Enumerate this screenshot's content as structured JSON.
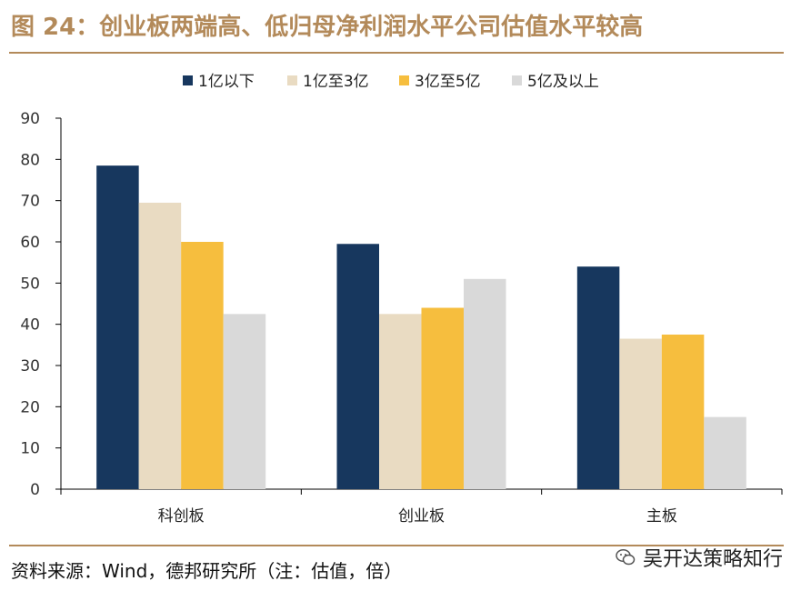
{
  "title": "图 24：创业板两端高、低归母净利润水平公司估值水平较高",
  "source": "资料来源：Wind，德邦研究所（注：估值，倍）",
  "watermark": "吴开达策略知行",
  "colors": {
    "title": "#b38a5a",
    "rule": "#b38a5a",
    "series": [
      "#17375e",
      "#e9dbc2",
      "#f6be3e",
      "#d9d9d9"
    ]
  },
  "chart_data": {
    "type": "bar",
    "categories": [
      "科创板",
      "创业板",
      "主板"
    ],
    "series": [
      {
        "name": "1亿以下",
        "values": [
          78.5,
          59.5,
          54.0
        ]
      },
      {
        "name": "1亿至3亿",
        "values": [
          69.5,
          42.5,
          36.5
        ]
      },
      {
        "name": "3亿至5亿",
        "values": [
          60.0,
          44.0,
          37.5
        ]
      },
      {
        "name": "5亿及以上",
        "values": [
          42.5,
          51.0,
          17.5
        ]
      }
    ],
    "ylim": [
      0,
      90
    ],
    "yticks": [
      0,
      10,
      20,
      30,
      40,
      50,
      60,
      70,
      80,
      90
    ],
    "legend_position": "top-center",
    "grid": false
  }
}
